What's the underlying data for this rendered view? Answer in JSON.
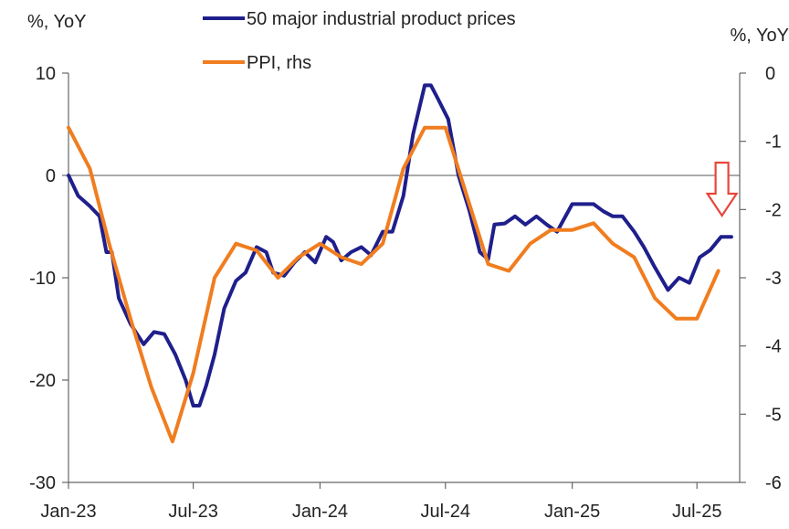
{
  "chart_data": {
    "type": "line",
    "left_axis": {
      "unit_label": "%, YoY",
      "ylim": [
        -30,
        10
      ],
      "ticks": [
        10,
        0,
        -10,
        -20,
        -30
      ],
      "tick_labels": [
        "10",
        "0",
        "-10",
        "-20",
        "-30"
      ]
    },
    "right_axis": {
      "unit_label": "%, YoY",
      "ylim": [
        -6,
        0
      ],
      "ticks": [
        0,
        -1,
        -2,
        -3,
        -4,
        -5,
        -6
      ],
      "tick_labels": [
        "0",
        "-1",
        "-2",
        "-3",
        "-4",
        "-5",
        "-6"
      ]
    },
    "x_axis": {
      "range": [
        "2023-01",
        "2025-09"
      ],
      "ticks": [
        "2023-01",
        "2023-07",
        "2024-01",
        "2024-07",
        "2025-01",
        "2025-07"
      ],
      "tick_labels": [
        "Jan-23",
        "Jul-23",
        "Jan-24",
        "Jul-24",
        "Jan-25",
        "Jul-25"
      ]
    },
    "zero_line": true,
    "grid": false,
    "legend_position": "top-center",
    "annotation": {
      "type": "down-arrow",
      "x": "2025-08",
      "color": "#e8463a"
    },
    "series": [
      {
        "name": "50 major industrial product prices",
        "axis": "left",
        "color": "#1f1f8c",
        "points": [
          [
            "2023-01-01",
            0
          ],
          [
            "2023-01-15",
            -2
          ],
          [
            "2023-02-01",
            -3
          ],
          [
            "2023-02-15",
            -4
          ],
          [
            "2023-02-25",
            -7.5
          ],
          [
            "2023-03-05",
            -7.5
          ],
          [
            "2023-03-15",
            -12
          ],
          [
            "2023-04-01",
            -14.5
          ],
          [
            "2023-04-20",
            -16.5
          ],
          [
            "2023-05-05",
            -15.3
          ],
          [
            "2023-05-20",
            -15.5
          ],
          [
            "2023-06-05",
            -17.5
          ],
          [
            "2023-06-20",
            -20
          ],
          [
            "2023-07-01",
            -22.5
          ],
          [
            "2023-07-10",
            -22.5
          ],
          [
            "2023-07-20",
            -20.5
          ],
          [
            "2023-08-01",
            -17.5
          ],
          [
            "2023-08-15",
            -13
          ],
          [
            "2023-09-01",
            -10.3
          ],
          [
            "2023-09-15",
            -9.5
          ],
          [
            "2023-10-01",
            -7
          ],
          [
            "2023-10-15",
            -7.5
          ],
          [
            "2023-10-25",
            -9.5
          ],
          [
            "2023-11-10",
            -9.8
          ],
          [
            "2023-11-25",
            -8.5
          ],
          [
            "2023-12-10",
            -7.5
          ],
          [
            "2023-12-25",
            -8.5
          ],
          [
            "2024-01-10",
            -6
          ],
          [
            "2024-01-20",
            -6.5
          ],
          [
            "2024-02-01",
            -8.3
          ],
          [
            "2024-02-15",
            -7.5
          ],
          [
            "2024-03-01",
            -7
          ],
          [
            "2024-03-15",
            -7.8
          ],
          [
            "2024-04-01",
            -5.5
          ],
          [
            "2024-04-15",
            -5.5
          ],
          [
            "2024-05-01",
            -2
          ],
          [
            "2024-05-15",
            4
          ],
          [
            "2024-06-01",
            8.8
          ],
          [
            "2024-06-10",
            8.8
          ],
          [
            "2024-06-20",
            7.5
          ],
          [
            "2024-07-05",
            5.5
          ],
          [
            "2024-07-20",
            0
          ],
          [
            "2024-08-05",
            -3.5
          ],
          [
            "2024-08-20",
            -7.5
          ],
          [
            "2024-09-01",
            -8.2
          ],
          [
            "2024-09-10",
            -4.8
          ],
          [
            "2024-09-25",
            -4.7
          ],
          [
            "2024-10-10",
            -4
          ],
          [
            "2024-10-25",
            -4.8
          ],
          [
            "2024-11-10",
            -4
          ],
          [
            "2024-11-25",
            -4.8
          ],
          [
            "2024-12-10",
            -5.5
          ],
          [
            "2025-01-01",
            -2.8
          ],
          [
            "2025-01-15",
            -2.8
          ],
          [
            "2025-02-01",
            -2.8
          ],
          [
            "2025-02-15",
            -3.5
          ],
          [
            "2025-03-01",
            -4
          ],
          [
            "2025-03-15",
            -4
          ],
          [
            "2025-04-01",
            -5.5
          ],
          [
            "2025-04-15",
            -7
          ],
          [
            "2025-05-01",
            -9
          ],
          [
            "2025-05-20",
            -11.2
          ],
          [
            "2025-06-05",
            -10
          ],
          [
            "2025-06-20",
            -10.5
          ],
          [
            "2025-07-05",
            -8
          ],
          [
            "2025-07-20",
            -7.3
          ],
          [
            "2025-08-05",
            -6
          ],
          [
            "2025-08-20",
            -6
          ]
        ]
      },
      {
        "name": "PPI, rhs",
        "axis": "right",
        "color": "#f07d1f",
        "points": [
          [
            "2023-01-01",
            -0.8
          ],
          [
            "2023-02-01",
            -1.4
          ],
          [
            "2023-03-01",
            -2.5
          ],
          [
            "2023-04-01",
            -3.6
          ],
          [
            "2023-05-01",
            -4.6
          ],
          [
            "2023-06-01",
            -5.4
          ],
          [
            "2023-07-01",
            -4.4
          ],
          [
            "2023-08-01",
            -3
          ],
          [
            "2023-09-01",
            -2.5
          ],
          [
            "2023-10-01",
            -2.6
          ],
          [
            "2023-11-01",
            -3
          ],
          [
            "2023-12-01",
            -2.7
          ],
          [
            "2024-01-01",
            -2.5
          ],
          [
            "2024-02-01",
            -2.7
          ],
          [
            "2024-03-01",
            -2.8
          ],
          [
            "2024-04-01",
            -2.5
          ],
          [
            "2024-05-01",
            -1.4
          ],
          [
            "2024-06-01",
            -0.8
          ],
          [
            "2024-07-01",
            -0.8
          ],
          [
            "2024-08-01",
            -1.8
          ],
          [
            "2024-09-01",
            -2.8
          ],
          [
            "2024-10-01",
            -2.9
          ],
          [
            "2024-11-01",
            -2.5
          ],
          [
            "2024-12-01",
            -2.3
          ],
          [
            "2025-01-01",
            -2.3
          ],
          [
            "2025-02-01",
            -2.2
          ],
          [
            "2025-03-01",
            -2.5
          ],
          [
            "2025-04-01",
            -2.7
          ],
          [
            "2025-05-01",
            -3.3
          ],
          [
            "2025-06-01",
            -3.6
          ],
          [
            "2025-07-01",
            -3.6
          ],
          [
            "2025-08-01",
            -2.9
          ]
        ]
      }
    ]
  }
}
